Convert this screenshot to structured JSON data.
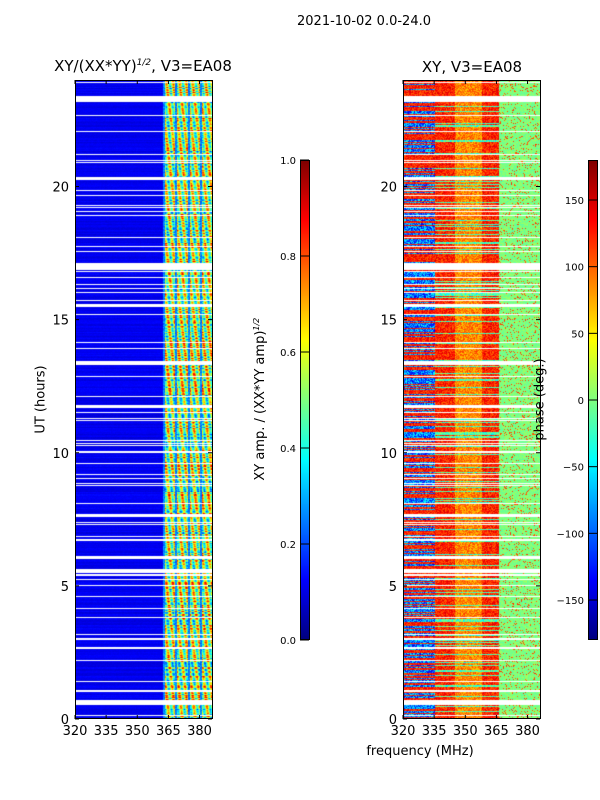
{
  "suptitle": "2021-10-02 0.0-24.0",
  "chart_data": [
    {
      "type": "heatmap",
      "title_main": "XY/(XX*YY)",
      "title_sup": "1/2",
      "title_rest": ", V3=EA08",
      "xlabel": "frequency (MHz)",
      "ylabel": "UT (hours)",
      "xlim": [
        320,
        386
      ],
      "ylim": [
        0,
        24
      ],
      "xticks": [
        320,
        335,
        350,
        365,
        380
      ],
      "yticks": [
        0,
        5,
        10,
        15,
        20
      ],
      "colorbar": {
        "label_main": "XY amp. / (XX*YY amp)",
        "label_sup": "1/2",
        "range": [
          0.0,
          1.0
        ],
        "ticks": [
          "0.0",
          "0.2",
          "0.4",
          "0.6",
          "0.8",
          "1.0"
        ],
        "colormap": "jet"
      },
      "description_values": {
        "background_level": 0.08,
        "band_start_mhz": 362,
        "band_level": 0.5
      }
    },
    {
      "type": "heatmap",
      "title": "XY, V3=EA08",
      "xlabel": "frequency (MHz)",
      "xlim": [
        320,
        386
      ],
      "ylim": [
        0,
        24
      ],
      "xticks": [
        320,
        335,
        350,
        365,
        380
      ],
      "yticks": [
        0,
        5,
        10,
        15,
        20
      ],
      "colorbar": {
        "label": "phase (deg.)",
        "range": [
          -180,
          180
        ],
        "ticks": [
          "−150",
          "−100",
          "−50",
          "0",
          "50",
          "100",
          "150"
        ],
        "tick_values": [
          -150,
          -100,
          -50,
          0,
          50,
          100,
          150
        ],
        "colormap": "jet"
      }
    }
  ],
  "flagged_hours": [
    [
      0.55,
      0.75
    ],
    [
      1.05,
      1.12
    ],
    [
      1.4,
      1.45
    ],
    [
      3.0,
      3.05
    ],
    [
      5.5,
      5.6
    ],
    [
      7.6,
      7.7
    ],
    [
      11.7,
      11.8
    ],
    [
      13.3,
      13.45
    ],
    [
      15.5,
      15.6
    ],
    [
      16.9,
      17.15
    ],
    [
      19.2,
      19.25
    ],
    [
      23.2,
      23.4
    ]
  ]
}
